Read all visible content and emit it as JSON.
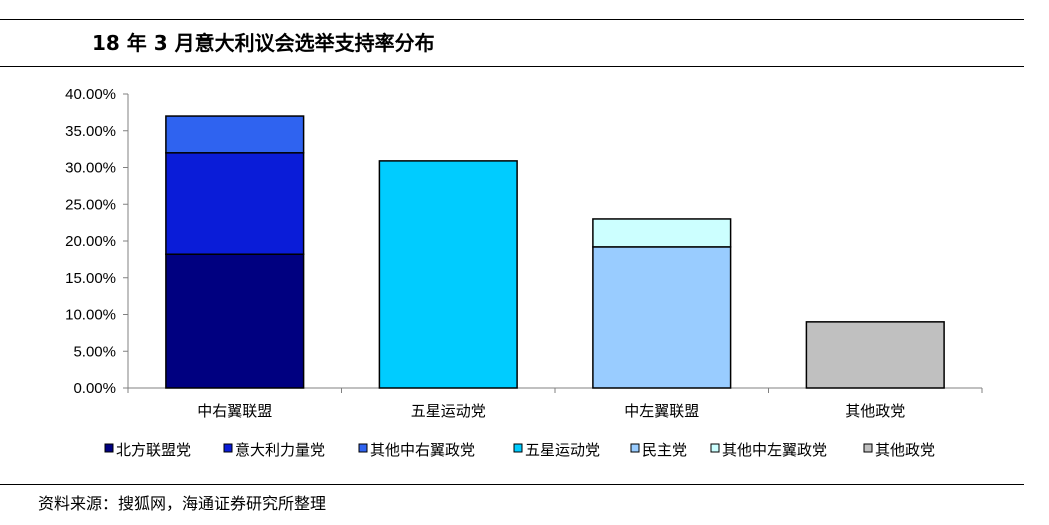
{
  "title": "18 年 3 月意大利议会选举支持率分布",
  "source": "资料来源：搜狐网，海通证券研究所整理",
  "chart_data": {
    "type": "bar",
    "stacked": true,
    "categories": [
      "中右翼联盟",
      "五星运动党",
      "中左翼联盟",
      "其他政党"
    ],
    "ylim": [
      0,
      40
    ],
    "yticks": [
      "0.00%",
      "5.00%",
      "10.00%",
      "15.00%",
      "20.00%",
      "25.00%",
      "30.00%",
      "35.00%",
      "40.00%"
    ],
    "legend_position": "bottom",
    "series": [
      {
        "name": "北方联盟党",
        "color": "#000080",
        "values": [
          18.2,
          0,
          0,
          0
        ]
      },
      {
        "name": "意大利力量党",
        "color": "#0a1cd8",
        "values": [
          13.8,
          0,
          0,
          0
        ]
      },
      {
        "name": "其他中右翼政党",
        "color": "#2f63f0",
        "values": [
          5.0,
          0,
          0,
          0
        ]
      },
      {
        "name": "五星运动党",
        "color": "#00ccff",
        "values": [
          0,
          30.9,
          0,
          0
        ]
      },
      {
        "name": "民主党",
        "color": "#99ccff",
        "values": [
          0,
          0,
          19.2,
          0
        ]
      },
      {
        "name": "其他中左翼政党",
        "color": "#ccffff",
        "values": [
          0,
          0,
          3.8,
          0
        ]
      },
      {
        "name": "其他政党",
        "color": "#c0c0c0",
        "values": [
          0,
          0,
          0,
          9.0
        ]
      }
    ]
  }
}
